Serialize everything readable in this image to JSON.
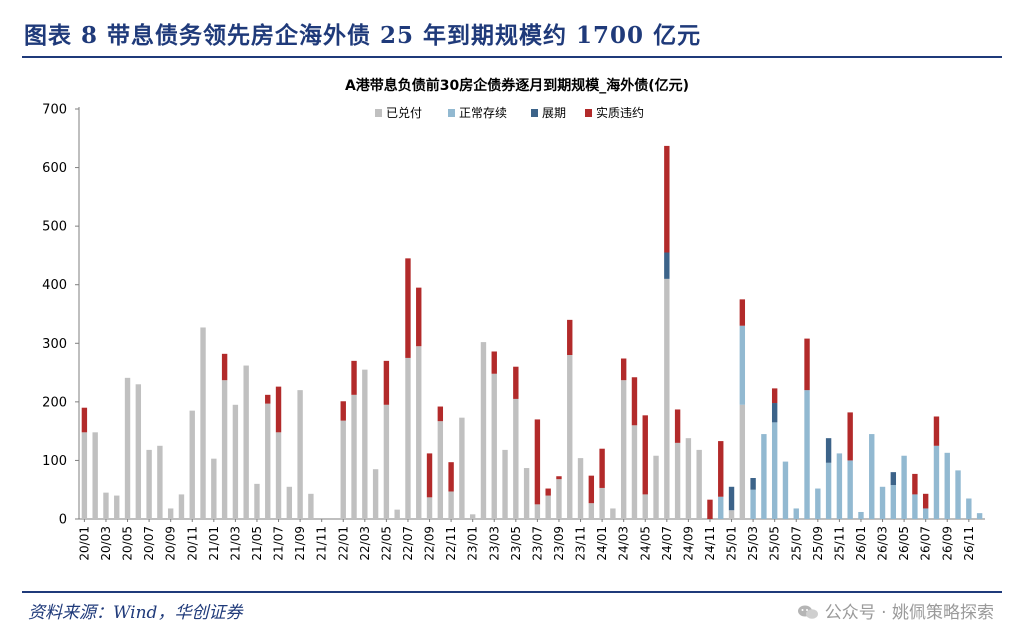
{
  "figure_caption": "图表 8 带息债务领先房企海外债 25 年到期规模约 1700 亿元",
  "source_note": "资料来源：Wind，华创证券",
  "watermark": "公众号 · 姚佩策略探索",
  "colors": {
    "paid": "#c0c0c0",
    "normal": "#92b9d1",
    "extended": "#3c6389",
    "default": "#b22a2a",
    "caption": "#1f3a7a"
  },
  "chart_data": {
    "type": "bar",
    "stacked": true,
    "title": "A港带息负债前30房企债券逐月到期规模_海外债(亿元)",
    "ylim": [
      0,
      700
    ],
    "yticks": [
      0,
      100,
      200,
      300,
      400,
      500,
      600,
      700
    ],
    "legend": [
      "已兑付",
      "正常存续",
      "展期",
      "实质违约"
    ],
    "legend_position": "top",
    "tick_labels": [
      "20/01",
      "20/03",
      "20/05",
      "20/07",
      "20/09",
      "20/11",
      "21/01",
      "21/03",
      "21/05",
      "21/07",
      "21/09",
      "21/11",
      "22/01",
      "22/03",
      "22/05",
      "22/07",
      "22/09",
      "22/11",
      "23/01",
      "23/03",
      "23/05",
      "23/07",
      "23/09",
      "23/11",
      "24/01",
      "24/03",
      "24/05",
      "24/07",
      "24/09",
      "24/11",
      "25/01",
      "25/03",
      "25/05",
      "25/07",
      "25/09",
      "25/11",
      "26/01",
      "26/03",
      "26/05",
      "26/07",
      "26/09",
      "26/11"
    ],
    "categories": [
      "20/01",
      "20/02",
      "20/03",
      "20/04",
      "20/05",
      "20/06",
      "20/07",
      "20/08",
      "20/09",
      "20/10",
      "20/11",
      "20/12",
      "21/01",
      "21/02",
      "21/03",
      "21/04",
      "21/05",
      "21/06",
      "21/07",
      "21/08",
      "21/09",
      "21/10",
      "21/11",
      "21/12",
      "22/01",
      "22/02",
      "22/03",
      "22/04",
      "22/05",
      "22/06",
      "22/07",
      "22/08",
      "22/09",
      "22/10",
      "22/11",
      "22/12",
      "23/01",
      "23/02",
      "23/03",
      "23/04",
      "23/05",
      "23/06",
      "23/07",
      "23/08",
      "23/09",
      "23/10",
      "23/11",
      "23/12",
      "24/01",
      "24/02",
      "24/03",
      "24/04",
      "24/05",
      "24/06",
      "24/07",
      "24/08",
      "24/09",
      "24/10",
      "24/11",
      "24/12",
      "25/01",
      "25/02",
      "25/03",
      "25/04",
      "25/05",
      "25/06",
      "25/07",
      "25/08",
      "25/09",
      "25/10",
      "25/11",
      "25/12",
      "26/01",
      "26/02",
      "26/03",
      "26/04",
      "26/05",
      "26/06",
      "26/07",
      "26/08",
      "26/09",
      "26/10",
      "26/11",
      "26/12"
    ],
    "series": [
      {
        "name": "已兑付",
        "values": [
          148,
          148,
          45,
          40,
          241,
          230,
          118,
          125,
          18,
          42,
          185,
          327,
          103,
          237,
          195,
          262,
          60,
          197,
          148,
          55,
          220,
          43,
          0,
          0,
          168,
          212,
          255,
          85,
          195,
          16,
          275,
          295,
          37,
          167,
          47,
          173,
          8,
          302,
          248,
          118,
          205,
          87,
          25,
          40,
          68,
          280,
          104,
          27,
          53,
          18,
          237,
          160,
          42,
          108,
          410,
          130,
          138,
          118,
          0,
          0,
          15,
          195,
          0,
          0,
          0,
          0,
          0,
          0,
          0,
          0,
          0,
          0,
          0,
          0,
          0,
          0,
          0,
          0,
          0,
          0,
          0,
          0,
          0,
          0
        ]
      },
      {
        "name": "正常存续",
        "values": [
          0,
          0,
          0,
          0,
          0,
          0,
          0,
          0,
          0,
          0,
          0,
          0,
          0,
          0,
          0,
          0,
          0,
          0,
          0,
          0,
          0,
          0,
          0,
          0,
          0,
          0,
          0,
          0,
          0,
          0,
          0,
          0,
          0,
          0,
          0,
          0,
          0,
          0,
          0,
          0,
          0,
          0,
          0,
          0,
          0,
          0,
          0,
          0,
          0,
          0,
          0,
          0,
          0,
          0,
          0,
          0,
          0,
          0,
          0,
          38,
          0,
          135,
          50,
          145,
          165,
          98,
          18,
          220,
          52,
          96,
          112,
          100,
          12,
          145,
          55,
          58,
          108,
          42,
          18,
          125,
          113,
          83,
          35,
          10
        ]
      },
      {
        "name": "展期",
        "values": [
          0,
          0,
          0,
          0,
          0,
          0,
          0,
          0,
          0,
          0,
          0,
          0,
          0,
          0,
          0,
          0,
          0,
          0,
          0,
          0,
          0,
          0,
          0,
          0,
          0,
          0,
          0,
          0,
          0,
          0,
          0,
          0,
          0,
          0,
          0,
          0,
          0,
          0,
          0,
          0,
          0,
          0,
          0,
          0,
          0,
          0,
          0,
          0,
          0,
          0,
          0,
          0,
          0,
          0,
          45,
          0,
          0,
          0,
          0,
          0,
          40,
          0,
          20,
          0,
          33,
          0,
          0,
          0,
          0,
          42,
          0,
          0,
          0,
          0,
          0,
          22,
          0,
          0,
          0,
          0,
          0,
          0,
          0,
          0
        ]
      },
      {
        "name": "实质违约",
        "values": [
          42,
          0,
          0,
          0,
          0,
          0,
          0,
          0,
          0,
          0,
          0,
          0,
          0,
          45,
          0,
          0,
          0,
          15,
          78,
          0,
          0,
          0,
          0,
          0,
          33,
          58,
          0,
          0,
          75,
          0,
          170,
          100,
          75,
          25,
          50,
          0,
          0,
          0,
          38,
          0,
          55,
          0,
          145,
          12,
          5,
          60,
          0,
          47,
          67,
          0,
          37,
          82,
          135,
          0,
          182,
          57,
          0,
          0,
          33,
          95,
          0,
          45,
          0,
          0,
          25,
          0,
          0,
          88,
          0,
          0,
          0,
          82,
          0,
          0,
          0,
          0,
          0,
          35,
          25,
          50,
          0,
          0,
          0,
          0
        ]
      }
    ]
  }
}
